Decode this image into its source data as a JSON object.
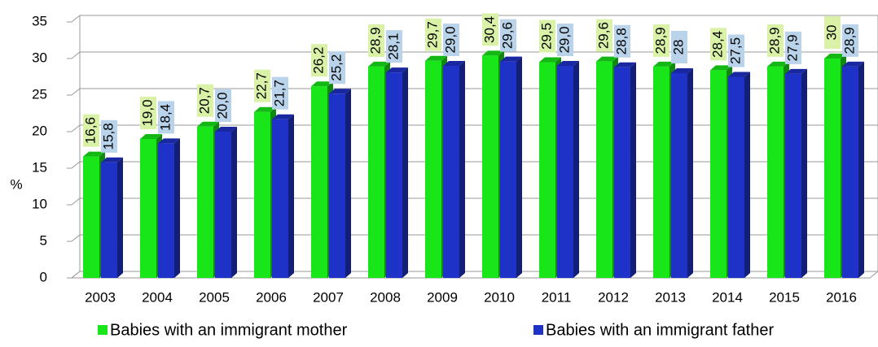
{
  "chart_data": {
    "type": "bar3d",
    "y_label": "%",
    "categories": [
      "2003",
      "2004",
      "2005",
      "2006",
      "2007",
      "2008",
      "2009",
      "2010",
      "2011",
      "2012",
      "2013",
      "2014",
      "2015",
      "2016"
    ],
    "series": [
      {
        "name": "Babies with an immigrant mother",
        "color": "#19e619",
        "values": [
          16.6,
          19.0,
          20.7,
          22.7,
          26.2,
          28.9,
          29.7,
          30.4,
          29.5,
          29.6,
          28.9,
          28.4,
          28.9,
          30
        ],
        "value_labels": [
          "16,6",
          "19,0",
          "20,7",
          "22,7",
          "26,2",
          "28,9",
          "29,7",
          "30,4",
          "29,5",
          "29,6",
          "28,9",
          "28,4",
          "28,9",
          "30"
        ]
      },
      {
        "name": "Babies with an immigrant father",
        "color": "#1f32c8",
        "values": [
          15.8,
          18.4,
          20.0,
          21.7,
          25.2,
          28.1,
          29.0,
          29.6,
          29.0,
          28.8,
          28,
          27.5,
          27.9,
          28.9
        ],
        "value_labels": [
          "15,8",
          "18,4",
          "20,0",
          "21,7",
          "25,2",
          "28,1",
          "29,0",
          "29,6",
          "29,0",
          "28,8",
          "28",
          "27,5",
          "27,9",
          "28,9"
        ]
      }
    ],
    "ylim": [
      0,
      35
    ],
    "yticks": [
      0,
      5,
      10,
      15,
      20,
      25,
      30,
      35
    ],
    "grid": true,
    "legend": "bottom"
  }
}
